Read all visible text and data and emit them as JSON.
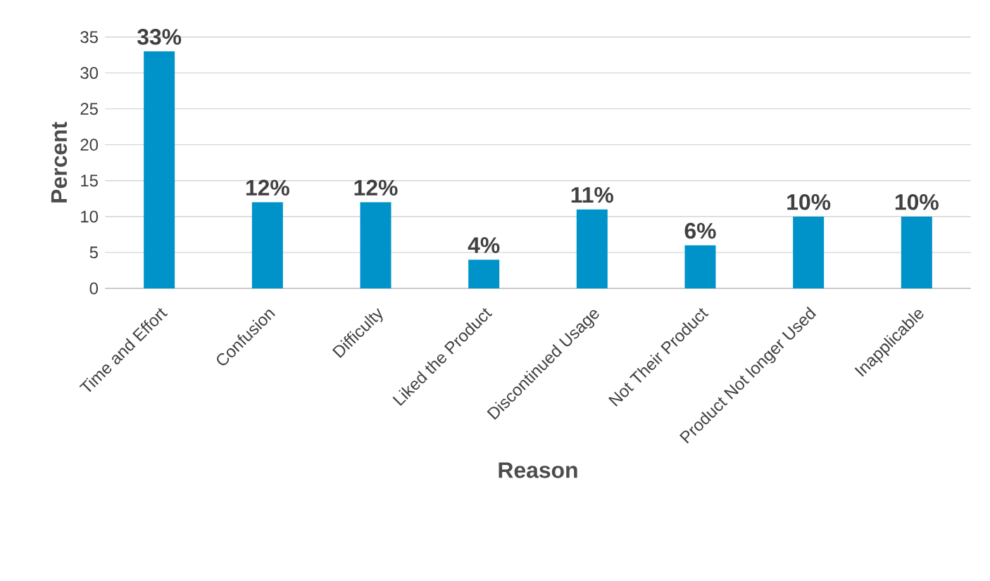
{
  "chart_data": {
    "type": "bar",
    "xlabel": "Reason",
    "ylabel": "Percent",
    "categories": [
      "Time and Effort",
      "Confusion",
      "Difficulty",
      "Liked the Product",
      "Discontinued Usage",
      "Not Their Product",
      "Product Not longer Used",
      "Inapplicable"
    ],
    "values": [
      33,
      12,
      12,
      4,
      11,
      6,
      10,
      10
    ],
    "value_labels": [
      "33%",
      "12%",
      "12%",
      "4%",
      "11%",
      "6%",
      "10%",
      "10%"
    ],
    "color": "#0093c9",
    "ylim": [
      0,
      35
    ],
    "yticks": [
      0,
      5,
      10,
      15,
      20,
      25,
      30,
      35
    ],
    "grid": "y"
  }
}
